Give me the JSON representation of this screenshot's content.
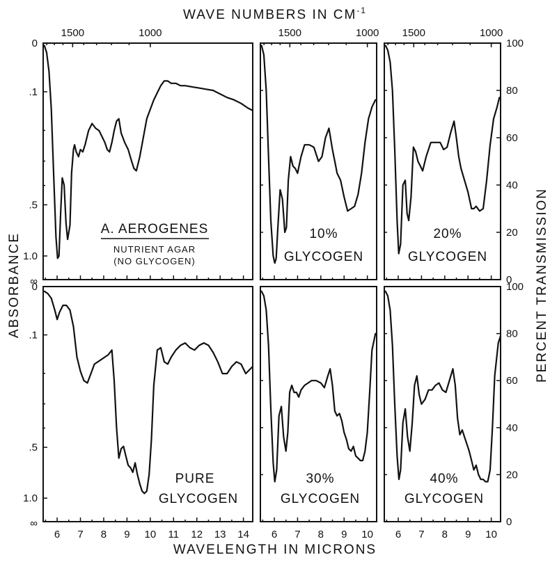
{
  "figure": {
    "top_axis_title": "WAVE NUMBERS IN CM",
    "top_axis_superscript": "-1",
    "bottom_axis_title": "WAVELENGTH IN MICRONS",
    "left_axis_title": "ABSORBANCE",
    "right_axis_title": "PERCENT TRANSMISSION"
  },
  "chart_data": [
    {
      "type": "line",
      "panel": "a-aerogenes",
      "label": "A. AEROGENES",
      "sublabel_1": "NUTRIENT AGAR",
      "sublabel_2": "(NO GLYCOGEN)",
      "xlabel": "WAVELENGTH IN MICRONS",
      "x_ticks": [
        6,
        7,
        8,
        9,
        10,
        11,
        12,
        13,
        14
      ],
      "xlim": [
        5.4,
        14.4
      ],
      "wavenumber_ticks": [
        1500,
        1000
      ],
      "ylabel": "ABSORBANCE",
      "ylim_transmission": [
        0,
        100
      ],
      "absorbance_ticks": [
        "0",
        ".1",
        ".5",
        "1.0",
        "∞"
      ],
      "series": [
        {
          "x": [
            5.45,
            5.55,
            5.65,
            5.75,
            5.85,
            5.95,
            6.02,
            6.08,
            6.15,
            6.22,
            6.3,
            6.38,
            6.45,
            6.55,
            6.62,
            6.7,
            6.75,
            6.82,
            6.92,
            7.0,
            7.1,
            7.2,
            7.35,
            7.5,
            7.65,
            7.8,
            7.95,
            8.05,
            8.15,
            8.25,
            8.35,
            8.45,
            8.55,
            8.65,
            8.75,
            8.9,
            9.05,
            9.2,
            9.3,
            9.4,
            9.55,
            9.7,
            9.85,
            10.0,
            10.15,
            10.3,
            10.45,
            10.6,
            10.75,
            10.9,
            11.1,
            11.3,
            11.5,
            11.8,
            12.1,
            12.4,
            12.7,
            13.0,
            13.3,
            13.6,
            13.9,
            14.2,
            14.4
          ],
          "y": [
            99,
            96,
            88,
            72,
            45,
            18,
            9,
            10,
            28,
            43,
            40,
            24,
            17,
            23,
            45,
            55,
            57,
            54,
            52,
            55,
            54,
            57,
            63,
            66,
            64,
            63,
            60,
            58,
            55,
            54,
            58,
            63,
            67,
            68,
            62,
            58,
            55,
            50,
            47,
            46,
            52,
            60,
            68,
            72,
            76,
            79,
            82,
            84,
            84,
            83,
            83,
            82,
            82,
            81.5,
            81,
            80.5,
            80,
            78.5,
            77,
            76,
            74.5,
            72.5,
            71.5
          ]
        }
      ]
    },
    {
      "type": "line",
      "panel": "10-glycogen",
      "label": "10%",
      "sublabel": "GLYCOGEN",
      "xlim": [
        5.4,
        10.4
      ],
      "wavenumber_ticks": [
        1500,
        1000
      ],
      "series": [
        {
          "x": [
            5.45,
            5.55,
            5.65,
            5.75,
            5.85,
            5.95,
            6.02,
            6.08,
            6.15,
            6.25,
            6.35,
            6.45,
            6.52,
            6.6,
            6.7,
            6.8,
            6.9,
            7.0,
            7.15,
            7.3,
            7.5,
            7.7,
            7.9,
            8.05,
            8.2,
            8.35,
            8.5,
            8.6,
            8.7,
            8.85,
            9.0,
            9.15,
            9.3,
            9.45,
            9.6,
            9.75,
            9.9,
            10.05,
            10.2,
            10.35
          ],
          "y": [
            99,
            95,
            80,
            52,
            25,
            10,
            7,
            9,
            22,
            38,
            34,
            20,
            22,
            42,
            52,
            48,
            47,
            45,
            52,
            57,
            57,
            56,
            50,
            52,
            60,
            64,
            55,
            50,
            45,
            42,
            35,
            29,
            30,
            31,
            36,
            45,
            58,
            68,
            73,
            76
          ]
        }
      ]
    },
    {
      "type": "line",
      "panel": "20-glycogen",
      "label": "20%",
      "sublabel": "GLYCOGEN",
      "xlim": [
        5.4,
        10.4
      ],
      "wavenumber_ticks": [
        1500,
        1000
      ],
      "y_ticks_right": [
        0,
        20,
        40,
        60,
        80,
        100
      ],
      "series": [
        {
          "x": [
            5.45,
            5.55,
            5.65,
            5.75,
            5.85,
            5.95,
            6.02,
            6.1,
            6.2,
            6.3,
            6.38,
            6.45,
            6.55,
            6.65,
            6.75,
            6.85,
            6.95,
            7.05,
            7.2,
            7.4,
            7.6,
            7.8,
            7.95,
            8.1,
            8.25,
            8.4,
            8.5,
            8.6,
            8.7,
            8.85,
            9.0,
            9.15,
            9.25,
            9.35,
            9.5,
            9.65,
            9.8,
            9.95,
            10.1,
            10.25,
            10.35
          ],
          "y": [
            99,
            97,
            92,
            80,
            55,
            25,
            11,
            15,
            40,
            42,
            28,
            25,
            35,
            56,
            54,
            50,
            48,
            46,
            52,
            58,
            58,
            58,
            55,
            56,
            62,
            67,
            60,
            52,
            47,
            42,
            37,
            30,
            30,
            31,
            29,
            30,
            42,
            57,
            68,
            73,
            77
          ]
        }
      ]
    },
    {
      "type": "line",
      "panel": "pure-glycogen",
      "label": "PURE",
      "sublabel": "GLYCOGEN",
      "xlim": [
        5.4,
        14.4
      ],
      "x_ticks": [
        6,
        7,
        8,
        9,
        10,
        11,
        12,
        13,
        14
      ],
      "series": [
        {
          "x": [
            5.45,
            5.6,
            5.75,
            5.9,
            6.0,
            6.1,
            6.25,
            6.4,
            6.55,
            6.7,
            6.85,
            7.0,
            7.15,
            7.3,
            7.45,
            7.6,
            7.75,
            7.9,
            8.05,
            8.2,
            8.35,
            8.45,
            8.55,
            8.65,
            8.75,
            8.85,
            8.95,
            9.05,
            9.15,
            9.25,
            9.35,
            9.45,
            9.55,
            9.65,
            9.75,
            9.85,
            9.95,
            10.05,
            10.15,
            10.3,
            10.45,
            10.6,
            10.75,
            10.9,
            11.1,
            11.3,
            11.5,
            11.7,
            11.9,
            12.1,
            12.3,
            12.5,
            12.7,
            12.9,
            13.1,
            13.3,
            13.5,
            13.7,
            13.9,
            14.1,
            14.4
          ],
          "y": [
            98,
            97,
            95,
            90,
            86,
            89,
            92,
            92,
            90,
            83,
            70,
            64,
            60,
            59,
            63,
            67,
            68,
            69,
            70,
            71,
            73,
            60,
            40,
            27,
            31,
            32,
            28,
            24,
            23,
            21,
            25,
            20,
            16,
            13,
            12,
            13,
            20,
            35,
            58,
            73,
            74,
            68,
            67,
            70,
            73,
            75,
            76,
            74,
            73,
            75,
            76,
            75,
            72,
            68,
            63,
            63,
            66,
            68,
            67,
            63,
            66
          ]
        }
      ]
    },
    {
      "type": "line",
      "panel": "30-glycogen",
      "label": "30%",
      "sublabel": "GLYCOGEN",
      "xlim": [
        5.4,
        10.4
      ],
      "x_ticks": [
        6,
        7,
        8,
        9,
        10
      ],
      "series": [
        {
          "x": [
            5.45,
            5.55,
            5.65,
            5.75,
            5.85,
            5.95,
            6.02,
            6.1,
            6.2,
            6.3,
            6.4,
            6.5,
            6.58,
            6.66,
            6.75,
            6.85,
            6.95,
            7.05,
            7.15,
            7.3,
            7.45,
            7.6,
            7.8,
            8.0,
            8.15,
            8.3,
            8.4,
            8.5,
            8.6,
            8.7,
            8.8,
            8.9,
            9.0,
            9.1,
            9.2,
            9.3,
            9.4,
            9.5,
            9.6,
            9.7,
            9.8,
            9.9,
            10.0,
            10.1,
            10.2,
            10.35
          ],
          "y": [
            98,
            96,
            90,
            75,
            48,
            25,
            17,
            22,
            45,
            49,
            36,
            30,
            38,
            55,
            58,
            55,
            55,
            53,
            56,
            58,
            59,
            60,
            60,
            59,
            57,
            62,
            65,
            58,
            47,
            45,
            46,
            43,
            38,
            35,
            31,
            30,
            32,
            28,
            27,
            26,
            26,
            30,
            38,
            55,
            73,
            80
          ]
        }
      ]
    },
    {
      "type": "line",
      "panel": "40-glycogen",
      "label": "40%",
      "sublabel": "GLYCOGEN",
      "xlim": [
        5.4,
        10.4
      ],
      "x_ticks": [
        6,
        7,
        8,
        9,
        10
      ],
      "y_ticks_right": [
        0,
        20,
        40,
        60,
        80,
        100
      ],
      "series": [
        {
          "x": [
            5.45,
            5.55,
            5.65,
            5.75,
            5.85,
            5.95,
            6.03,
            6.1,
            6.2,
            6.3,
            6.4,
            6.5,
            6.6,
            6.7,
            6.8,
            6.9,
            7.0,
            7.15,
            7.3,
            7.45,
            7.6,
            7.75,
            7.9,
            8.05,
            8.2,
            8.35,
            8.45,
            8.55,
            8.65,
            8.75,
            8.85,
            8.95,
            9.05,
            9.15,
            9.25,
            9.35,
            9.45,
            9.55,
            9.65,
            9.75,
            9.85,
            9.95,
            10.05,
            10.15,
            10.3,
            10.4
          ],
          "y": [
            98,
            96,
            90,
            75,
            50,
            28,
            18,
            22,
            42,
            48,
            36,
            30,
            42,
            58,
            62,
            54,
            50,
            52,
            56,
            56,
            58,
            59,
            56,
            55,
            60,
            65,
            58,
            44,
            37,
            39,
            36,
            33,
            30,
            26,
            22,
            24,
            20,
            18,
            18,
            17,
            17,
            22,
            40,
            62,
            76,
            79
          ]
        }
      ]
    }
  ]
}
